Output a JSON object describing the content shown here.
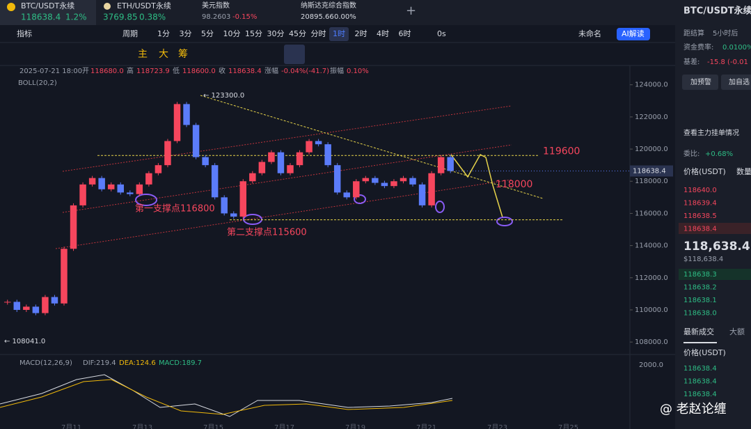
{
  "tabs": [
    {
      "name": "BTC/USDT永续",
      "price": "118638.4",
      "change": "1.2%"
    },
    {
      "name": "ETH/USDT永续",
      "price": "3769.85",
      "change": "0.38%"
    },
    {
      "name": "美元指数",
      "price": "98.2603",
      "change": "-0.15%"
    },
    {
      "name": "纳斯达克综合指数",
      "price": "20895.66",
      "change": "0.00%"
    }
  ],
  "toolbar": {
    "indicator": "指标",
    "period": "周期",
    "intervals": [
      "1分",
      "3分",
      "5分",
      "10分",
      "15分",
      "30分",
      "45分",
      "分时",
      "1时",
      "2时",
      "4时",
      "6时"
    ],
    "seconds": "0s",
    "layout": "未命名",
    "ai": "AI解读"
  },
  "draw_tools": [
    "主",
    "大",
    "筹"
  ],
  "info": {
    "time": "2025-07-21 18:00",
    "open_label": "开",
    "open": "118680.0",
    "high_label": "高",
    "high": "118723.9",
    "low_label": "低",
    "low": "118600.0",
    "close_label": "收",
    "close": "118638.4",
    "chg_label": "涨幅",
    "chg": "-0.04%(-41.7)",
    "amp_label": "振幅",
    "amp": "0.10%",
    "boll": "BOLL(20,2)"
  },
  "chart": {
    "type": "candlestick",
    "ylim": [
      107400,
      125200
    ],
    "yticks": [
      {
        "value": 124000,
        "label": "124000.0"
      },
      {
        "value": 122000,
        "label": "122000.0"
      },
      {
        "value": 120000,
        "label": "120000.0"
      },
      {
        "value": 118000,
        "label": "118000.0"
      },
      {
        "value": 116000,
        "label": "116000.0"
      },
      {
        "value": 114000,
        "label": "114000.0"
      },
      {
        "value": 112000,
        "label": "112000.0"
      },
      {
        "value": 110000,
        "label": "110000.0"
      },
      {
        "value": 108000,
        "label": "108000.0"
      }
    ],
    "close": [
      110500,
      110000,
      110200,
      109800,
      110800,
      110400,
      113800,
      116500,
      117800,
      118200,
      117500,
      117800,
      117300,
      117200,
      117800,
      118500,
      119000,
      120500,
      122800,
      121500,
      119500,
      119000,
      117000,
      116000,
      115800,
      118000,
      118500,
      119200,
      119800,
      118500,
      119000,
      119800,
      120500,
      120300,
      119000,
      117300,
      117000,
      118000,
      118200,
      117900,
      117700,
      118000,
      118200,
      117800,
      116500,
      118500,
      119500,
      118638.4
    ],
    "current": {
      "value": 118638.4,
      "label": "118638.4"
    },
    "high_mark": "← 123300.0",
    "low_mark": "← 108041.0",
    "levels": [
      {
        "value": 119600,
        "label": "119600"
      },
      {
        "value": 115600,
        "label": "115600"
      }
    ],
    "target": "118000",
    "support1": "第一支撑点116800",
    "support2": "第二支撑点115600",
    "dates": [
      "7月11",
      "7月13",
      "7月15",
      "7月17",
      "7月19",
      "7月21",
      "7月23",
      "7月25"
    ]
  },
  "macd": {
    "title": "MACD(12,26,9)",
    "dif": "DIF:219.4",
    "dea": "DEA:124.6",
    "macd": "MACD:189.7",
    "tick": "2000.0"
  },
  "panel": {
    "symbol": "BTC/USDT永续",
    "settle_label": "距结算",
    "settle": "5小时后",
    "funding_label": "资金费率:",
    "funding": "0.0100%",
    "basis_label": "基差:",
    "basis": "-15.8 (-0.01",
    "alert": "加预警",
    "watch": "加自选",
    "depth": "查看主力挂单情况",
    "ratio_label": "委比:",
    "ratio": "+0.68%",
    "price_head": "价格(USDT)",
    "qty_head": "数量",
    "asks": [
      "118640.0",
      "118639.4",
      "118638.5",
      "118638.4"
    ],
    "last": "118,638.4",
    "last_usd": "$118,638.4",
    "bids": [
      "118638.3",
      "118638.2",
      "118638.1",
      "118638.0"
    ],
    "trades_tab": "最新成交",
    "big_tab": "大额",
    "trade_head": "价格(USDT)",
    "trades": [
      "118638.4",
      "118638.4",
      "118638.4"
    ]
  },
  "watermark": "@ 老赵论缠"
}
